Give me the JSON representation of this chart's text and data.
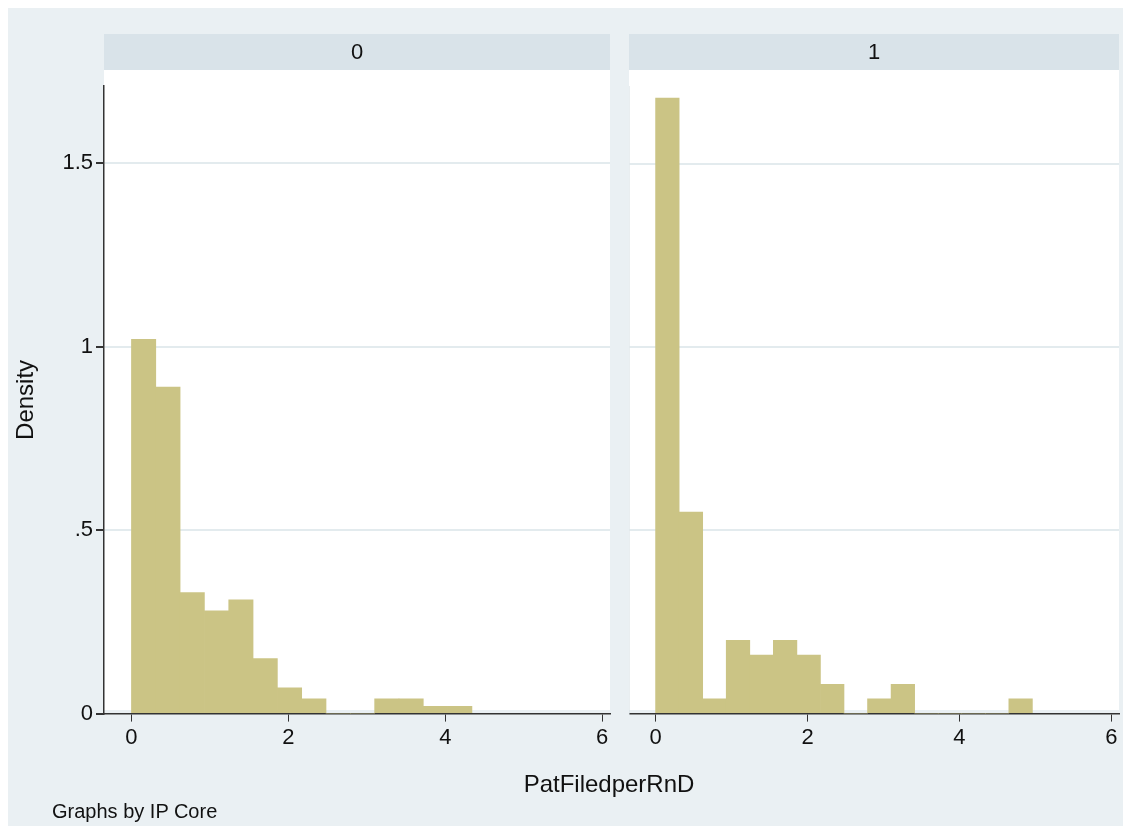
{
  "chart_data": [
    {
      "type": "histogram",
      "title": "0",
      "xlabel": "PatFiledperRnD",
      "ylabel": "Density",
      "annotations": [
        "Graphs by IP Core"
      ],
      "color": "#cbc485",
      "bins": [
        0,
        0.31,
        0.62,
        0.93,
        1.24,
        1.55,
        1.86,
        2.17,
        2.48,
        2.79,
        3.1,
        3.41,
        3.72,
        4.03,
        4.34
      ],
      "values": [
        1.02,
        0.89,
        0.33,
        0.28,
        0.31,
        0.15,
        0.07,
        0.04,
        0,
        0,
        0.04,
        0.04,
        0.02,
        0.02
      ],
      "xlim": [
        -0.35,
        6.1
      ],
      "xticks": [
        0,
        2,
        4,
        6
      ],
      "ylim": [
        0,
        1.71
      ],
      "yticks": [
        0,
        {
          "value": 0.5,
          "label": ".5"
        },
        1,
        1.5
      ],
      "grid": "y"
    },
    {
      "type": "histogram",
      "title": "1",
      "color": "#cbc485",
      "bins": [
        0,
        0.31,
        0.62,
        0.93,
        1.24,
        1.55,
        1.86,
        2.17,
        2.48,
        2.79,
        3.1,
        3.41,
        3.72,
        4.03,
        4.34,
        4.65,
        4.96
      ],
      "values": [
        1.68,
        0.55,
        0.04,
        0.2,
        0.16,
        0.2,
        0.16,
        0.08,
        0,
        0.04,
        0.08,
        0,
        0,
        0,
        0,
        0.04
      ],
      "xlim": [
        -0.35,
        6.1
      ],
      "xticks": [
        0,
        2,
        4,
        6
      ],
      "ylim": [
        0,
        1.71
      ],
      "yticks": [
        0,
        0.5,
        1,
        1.5
      ],
      "grid": "y",
      "tick_labels": "x"
    }
  ]
}
